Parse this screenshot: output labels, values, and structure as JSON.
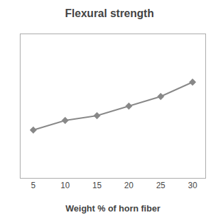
{
  "chart_data": {
    "type": "line",
    "title": "Flexural strength",
    "xlabel": "Weight % of horn fiber",
    "x": [
      5,
      10,
      15,
      20,
      25,
      30
    ],
    "values": [
      100,
      102,
      103,
      105,
      107,
      110
    ],
    "xlim": [
      3,
      32
    ],
    "xticks": [
      5,
      10,
      15,
      20,
      25,
      30
    ],
    "ylim": [
      90,
      120
    ],
    "color": "#888888",
    "marker": "diamond",
    "grid": false,
    "tick_labels": "x"
  }
}
